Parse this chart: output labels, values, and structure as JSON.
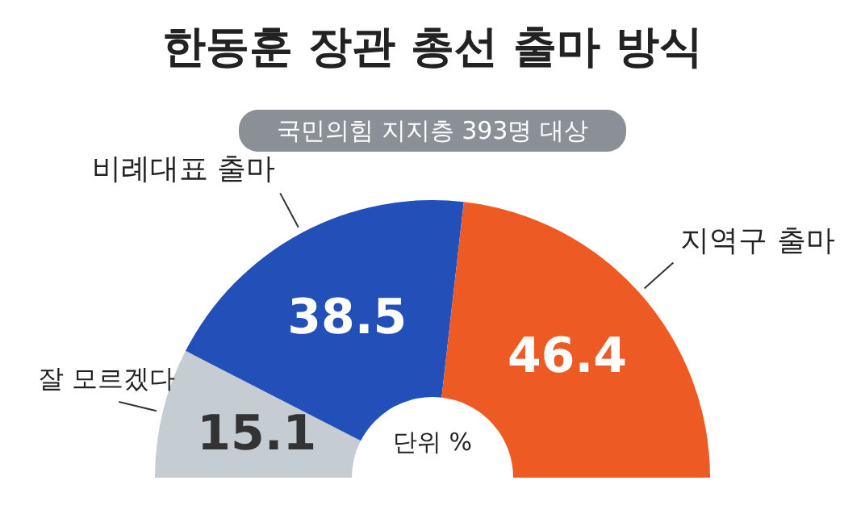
{
  "chart_data": {
    "type": "donut",
    "title": "한동훈 장관 총선 출마 방식",
    "subtitle": "국민의힘 지지층 393명 대상",
    "categories": [
      "잘 모르겠다",
      "비례대표 출마",
      "지역구 출마"
    ],
    "values": [
      15.1,
      38.5,
      46.4
    ],
    "colors": [
      "#c5cdd3",
      "#2350b8",
      "#ee5a24"
    ],
    "data_labels": true,
    "legend": false,
    "annotations": [
      "단위 %"
    ]
  }
}
